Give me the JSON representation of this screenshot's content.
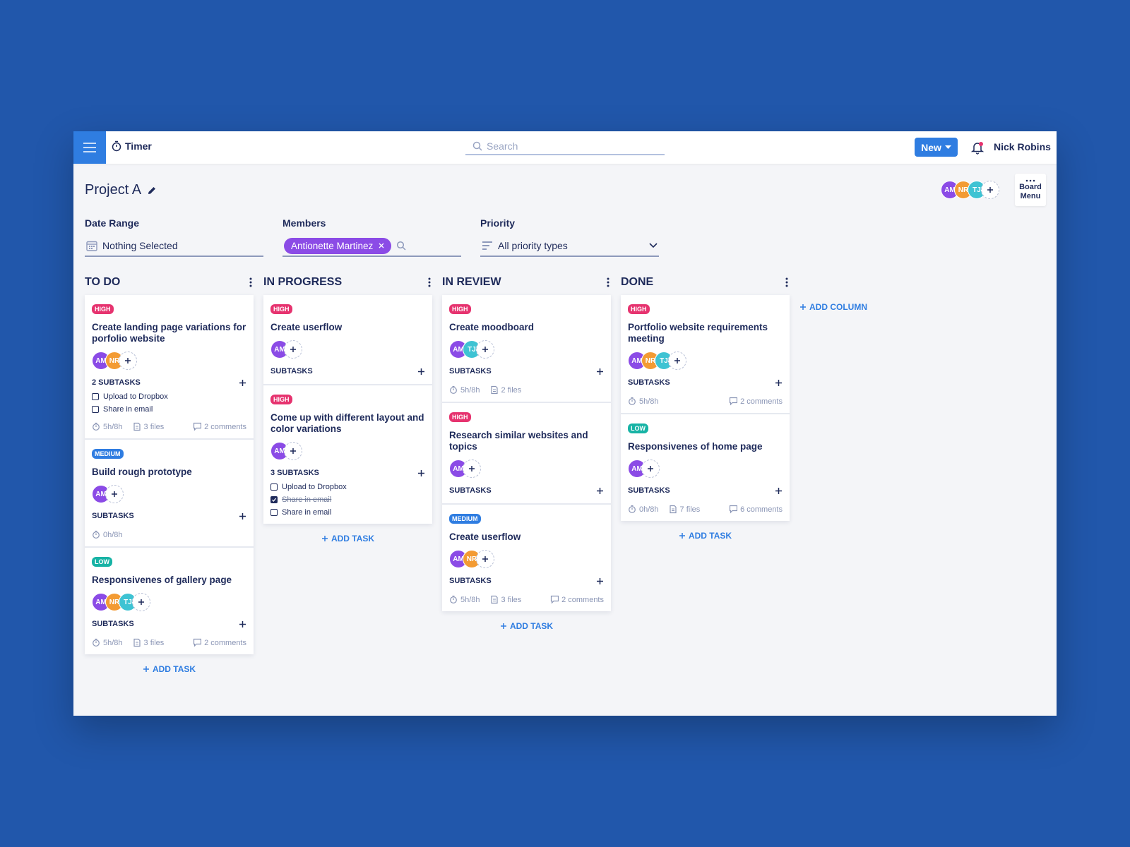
{
  "header": {
    "app": "Timer",
    "search_placeholder": "Search",
    "new_button": "New",
    "user": "Nick Robins"
  },
  "project": {
    "title": "Project A",
    "members": [
      "AM",
      "NR",
      "TJ"
    ],
    "board_menu": "Board Menu"
  },
  "filters": {
    "date_range": {
      "label": "Date Range",
      "value": "Nothing Selected"
    },
    "members": {
      "label": "Members",
      "chip": "Antionette Martinez"
    },
    "priority": {
      "label": "Priority",
      "value": "All priority types"
    }
  },
  "avatar_colors": {
    "AM": "#8b4be6",
    "NR": "#f39b33",
    "TJ": "#3ec3d3"
  },
  "priority_colors": {
    "HIGH": "#e6336f",
    "MEDIUM": "#2f7de1",
    "LOW": "#17b3a5"
  },
  "columns": [
    {
      "title": "TO DO",
      "add_task": "ADD TASK",
      "cards": [
        {
          "priority": "HIGH",
          "title": "Create landing page variations for porfolio website",
          "avatars": [
            "AM",
            "NR"
          ],
          "subtasks_label": "2 SUBTASKS",
          "subtasks": [
            {
              "text": "Upload to Dropbox",
              "done": false
            },
            {
              "text": "Share in email",
              "done": false
            }
          ],
          "time": "5h/8h",
          "files": "3 files",
          "comments": "2 comments"
        },
        {
          "priority": "MEDIUM",
          "title": "Build rough prototype",
          "avatars": [
            "AM"
          ],
          "subtasks_label": "SUBTASKS",
          "subtasks": [],
          "time": "0h/8h"
        },
        {
          "priority": "LOW",
          "title": "Responsivenes of gallery page",
          "avatars": [
            "AM",
            "NR",
            "TJ"
          ],
          "subtasks_label": "SUBTASKS",
          "subtasks": [],
          "time": "5h/8h",
          "files": "3 files",
          "comments": "2 comments"
        }
      ]
    },
    {
      "title": "IN PROGRESS",
      "add_task": "ADD TASK",
      "cards": [
        {
          "priority": "HIGH",
          "title": "Create userflow",
          "avatars": [
            "AM"
          ],
          "subtasks_label": "SUBTASKS",
          "subtasks": []
        },
        {
          "priority": "HIGH",
          "title": "Come up with different layout and color variations",
          "avatars": [
            "AM"
          ],
          "subtasks_label": "3 SUBTASKS",
          "subtasks": [
            {
              "text": "Upload to Dropbox",
              "done": false
            },
            {
              "text": "Share in email",
              "done": true
            },
            {
              "text": "Share in email",
              "done": false
            }
          ]
        }
      ]
    },
    {
      "title": "IN REVIEW",
      "add_task": "ADD TASK",
      "cards": [
        {
          "priority": "HIGH",
          "title": "Create moodboard",
          "avatars": [
            "AM",
            "TJ"
          ],
          "subtasks_label": "SUBTASKS",
          "subtasks": [],
          "time": "5h/8h",
          "files": "2 files"
        },
        {
          "priority": "HIGH",
          "title": "Research similar websites and topics",
          "avatars": [
            "AM"
          ],
          "subtasks_label": "SUBTASKS",
          "subtasks": []
        },
        {
          "priority": "MEDIUM",
          "title": "Create userflow",
          "avatars": [
            "AM",
            "NR"
          ],
          "subtasks_label": "SUBTASKS",
          "subtasks": [],
          "time": "5h/8h",
          "files": "3 files",
          "comments": "2 comments"
        }
      ]
    },
    {
      "title": "DONE",
      "add_task": "ADD TASK",
      "cards": [
        {
          "priority": "HIGH",
          "title": "Portfolio website requirements meeting",
          "avatars": [
            "AM",
            "NR",
            "TJ"
          ],
          "subtasks_label": "SUBTASKS",
          "subtasks": [],
          "time": "5h/8h",
          "comments": "2 comments"
        },
        {
          "priority": "LOW",
          "title": "Responsivenes of home page",
          "avatars": [
            "AM"
          ],
          "subtasks_label": "SUBTASKS",
          "subtasks": [],
          "time": "0h/8h",
          "files": "7 files",
          "comments": "6 comments"
        }
      ]
    }
  ],
  "add_column": "ADD COLUMN"
}
